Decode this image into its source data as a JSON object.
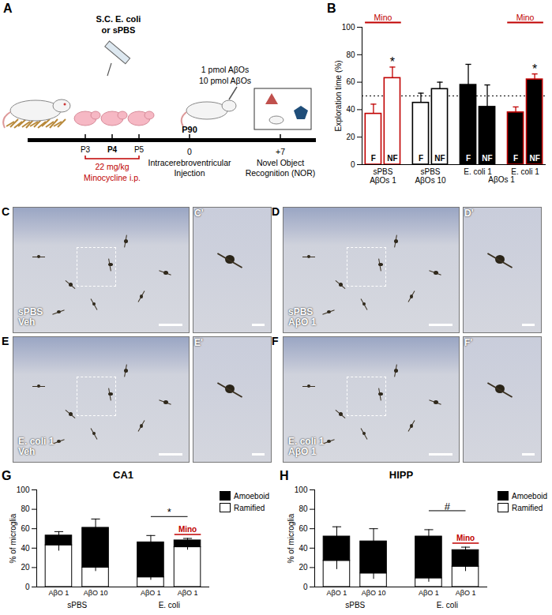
{
  "schematic": {
    "panel": "A",
    "treatment": [
      "S.C. E. coli",
      "or sPBS"
    ],
    "days": [
      "P3",
      "P4",
      "P5"
    ],
    "minocycline": [
      "22 mg/kg",
      "Minocycline i.p."
    ],
    "doses": [
      "1 pmol AβOs",
      "10 pmol AβOs"
    ],
    "adult_age": "P90",
    "events": [
      {
        "time": "0",
        "label": [
          "Intracerebroventricular",
          "Injection"
        ]
      },
      {
        "time": "+7",
        "label": [
          "Novel Object",
          "Recognition (NOR)"
        ]
      }
    ]
  },
  "micrographs": [
    {
      "panel": "C",
      "inset": "C'",
      "labels": [
        "sPBS",
        "Veh"
      ]
    },
    {
      "panel": "D",
      "inset": "D'",
      "labels": [
        "sPBS",
        "AβO 1"
      ]
    },
    {
      "panel": "E",
      "inset": "E'",
      "labels": [
        "E. coli 1",
        "Veh"
      ]
    },
    {
      "panel": "F",
      "inset": "F'",
      "labels": [
        "E. coli 1",
        "AβO 1"
      ]
    }
  ],
  "chart_data": [
    {
      "panel": "B",
      "type": "bar",
      "ylabel": "Exploration time (%)",
      "ylim": [
        0,
        100
      ],
      "yticks": [
        0,
        20,
        40,
        60,
        80,
        100
      ],
      "reference_line": 50,
      "clusters": [
        {
          "groups": [
            {
              "labels": [
                "sPBS",
                "AβOs 1"
              ],
              "color": "#ffffff",
              "edge_color": "#c00000",
              "annotation": "Mino",
              "bars": [
                {
                  "label": "F",
                  "value": 37,
                  "error": 7
                },
                {
                  "label": "NF",
                  "value": 63,
                  "error": 8,
                  "significance": "*"
                }
              ]
            }
          ]
        },
        {
          "groups": [
            {
              "labels": [
                "sPBS",
                "AβOs 10"
              ],
              "color": "#ffffff",
              "edge_color": "#000000",
              "bars": [
                {
                  "label": "F",
                  "value": 45,
                  "error": 7
                },
                {
                  "label": "NF",
                  "value": 55,
                  "error": 5
                }
              ]
            }
          ]
        },
        {
          "label": "AβOs 1",
          "groups": [
            {
              "labels": [
                "E. coli 1"
              ],
              "color": "#000000",
              "edge_color": "#000000",
              "bars": [
                {
                  "label": "F",
                  "value": 58,
                  "error": 15
                },
                {
                  "label": "NF",
                  "value": 42,
                  "error": 16
                }
              ]
            },
            {
              "labels": [
                "E. coli 1"
              ],
              "color": "#000000",
              "edge_color": "#c00000",
              "annotation": "Mino",
              "bars": [
                {
                  "label": "F",
                  "value": 38,
                  "error": 4
                },
                {
                  "label": "NF",
                  "value": 62,
                  "error": 4,
                  "significance": "*"
                }
              ]
            }
          ]
        }
      ]
    },
    {
      "panel": "G",
      "type": "bar",
      "stacked": true,
      "title": "CA1",
      "ylabel": "% of microglia",
      "ylim": [
        0,
        100
      ],
      "yticks": [
        0,
        20,
        40,
        60,
        80,
        100
      ],
      "legend": "top-right",
      "groups": [
        {
          "label": "sPBS",
          "categories": [
            "AβO 1",
            "AβO 10"
          ]
        },
        {
          "label": "E. coli",
          "categories": [
            "AβO 1",
            "AβO 1"
          ]
        }
      ],
      "category_annotations": [
        null,
        null,
        null,
        "Mino"
      ],
      "comparisons": [
        {
          "label": "*",
          "between": [
            2,
            3
          ]
        }
      ],
      "series": [
        {
          "name": "Ramified",
          "color": "#ffffff",
          "values": [
            43,
            20,
            10,
            41
          ],
          "errors": [
            6,
            4,
            3,
            3
          ]
        },
        {
          "name": "Amoeboid",
          "color": "#000000",
          "values": [
            10,
            41,
            36,
            7
          ],
          "errors": [
            4,
            9,
            7,
            2
          ]
        }
      ]
    },
    {
      "panel": "H",
      "type": "bar",
      "stacked": true,
      "title": "HIPP",
      "ylabel": "% of microglia",
      "ylim": [
        0,
        100
      ],
      "yticks": [
        0,
        20,
        40,
        60,
        80,
        100
      ],
      "legend": "top-right",
      "groups": [
        {
          "label": "sPBS",
          "categories": [
            "AβO 1",
            "AβO 10"
          ]
        },
        {
          "label": "E. coli",
          "categories": [
            "AβO 1",
            "AβO 1"
          ]
        }
      ],
      "category_annotations": [
        null,
        null,
        null,
        "Mino"
      ],
      "comparisons": [
        {
          "label": "#",
          "between": [
            2,
            3
          ]
        }
      ],
      "series": [
        {
          "name": "Ramified",
          "color": "#ffffff",
          "values": [
            27,
            14,
            9,
            21
          ],
          "errors": [
            9,
            6,
            4,
            5
          ]
        },
        {
          "name": "Amoeboid",
          "color": "#000000",
          "values": [
            25,
            33,
            43,
            17
          ],
          "errors": [
            10,
            13,
            7,
            3
          ]
        }
      ]
    }
  ]
}
